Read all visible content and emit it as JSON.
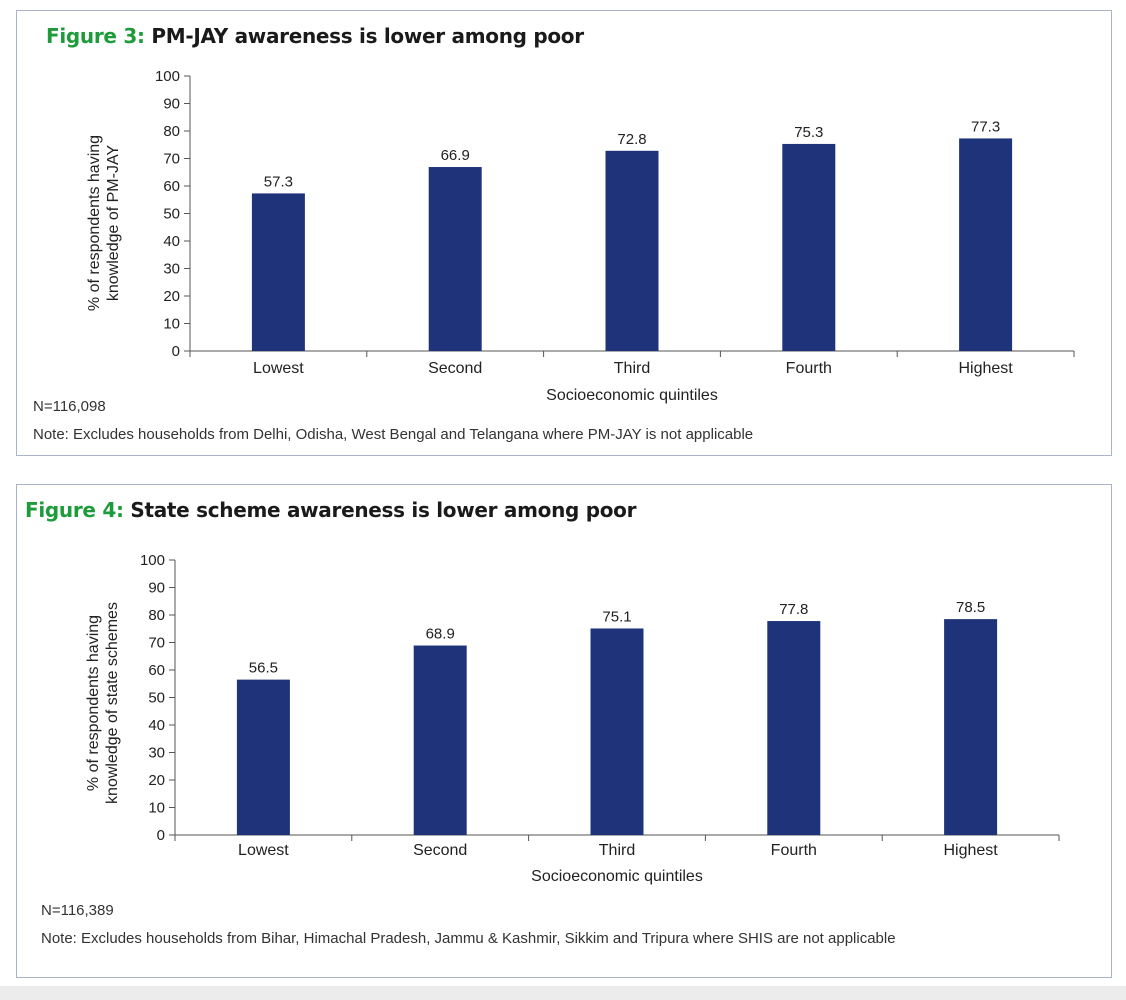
{
  "colors": {
    "bar": "#1f337a",
    "figure_label": "#1e9b3a",
    "panel_border": "#aab3cc"
  },
  "chart_data": [
    {
      "type": "bar",
      "figure_label": "Figure 3:",
      "title": "PM-JAY awareness is lower among poor",
      "categories": [
        "Lowest",
        "Second",
        "Third",
        "Fourth",
        "Highest"
      ],
      "values": [
        57.3,
        66.9,
        72.8,
        75.3,
        77.3
      ],
      "value_labels": [
        "57.3",
        "66.9",
        "72.8",
        "75.3",
        "77.3"
      ],
      "ylim": [
        0,
        100
      ],
      "yticks": [
        "0",
        "10",
        "20",
        "30",
        "40",
        "50",
        "60",
        "70",
        "80",
        "90",
        "100"
      ],
      "ylabel_lines": [
        "% of respondents having",
        "knowledge of PM-JAY"
      ],
      "xlabel": "Socioeconomic quintiles",
      "n_note": "N=116,098",
      "note": "Note: Excludes households from Delhi, Odisha, West Bengal and Telangana where PM-JAY is not applicable"
    },
    {
      "type": "bar",
      "figure_label": "Figure 4:",
      "title": "State scheme awareness is lower among poor",
      "categories": [
        "Lowest",
        "Second",
        "Third",
        "Fourth",
        "Highest"
      ],
      "values": [
        56.5,
        68.9,
        75.1,
        77.8,
        78.5
      ],
      "value_labels": [
        "56.5",
        "68.9",
        "75.1",
        "77.8",
        "78.5"
      ],
      "ylim": [
        0,
        100
      ],
      "yticks": [
        "0",
        "10",
        "20",
        "30",
        "40",
        "50",
        "60",
        "70",
        "80",
        "90",
        "100"
      ],
      "ylabel_lines": [
        "% of respondents having",
        "knowledge of state schemes"
      ],
      "xlabel": "Socioeconomic quintiles",
      "n_note": "N=116,389",
      "note": "Note: Excludes households from Bihar, Himachal Pradesh, Jammu & Kashmir, Sikkim and Tripura where SHIS are not applicable"
    }
  ]
}
